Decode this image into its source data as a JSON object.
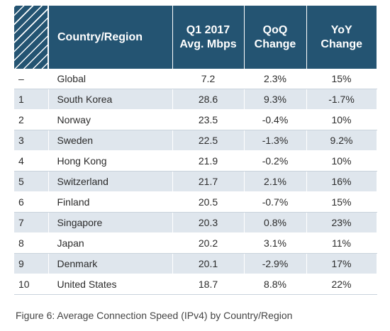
{
  "chart_data": {
    "type": "table",
    "columns": [
      "",
      "Country/Region",
      "Q1 2017 Avg. Mbps",
      "QoQ Change",
      "YoY Change"
    ],
    "header": {
      "country": "Country/Region",
      "speed_line1": "Q1 2017",
      "speed_line2": "Avg. Mbps",
      "qoq_line1": "QoQ",
      "qoq_line2": "Change",
      "yoy_line1": "YoY",
      "yoy_line2": "Change"
    },
    "rows": [
      {
        "rank": "–",
        "country": "Global",
        "speed": "7.2",
        "qoq": "2.3%",
        "yoy": "15%"
      },
      {
        "rank": "1",
        "country": "South Korea",
        "speed": "28.6",
        "qoq": "9.3%",
        "yoy": "-1.7%"
      },
      {
        "rank": "2",
        "country": "Norway",
        "speed": "23.5",
        "qoq": "-0.4%",
        "yoy": "10%"
      },
      {
        "rank": "3",
        "country": "Sweden",
        "speed": "22.5",
        "qoq": "-1.3%",
        "yoy": "9.2%"
      },
      {
        "rank": "4",
        "country": "Hong Kong",
        "speed": "21.9",
        "qoq": "-0.2%",
        "yoy": "10%"
      },
      {
        "rank": "5",
        "country": "Switzerland",
        "speed": "21.7",
        "qoq": "2.1%",
        "yoy": "16%"
      },
      {
        "rank": "6",
        "country": "Finland",
        "speed": "20.5",
        "qoq": "-0.7%",
        "yoy": "15%"
      },
      {
        "rank": "7",
        "country": "Singapore",
        "speed": "20.3",
        "qoq": "0.8%",
        "yoy": "23%"
      },
      {
        "rank": "8",
        "country": "Japan",
        "speed": "20.2",
        "qoq": "3.1%",
        "yoy": "11%"
      },
      {
        "rank": "9",
        "country": "Denmark",
        "speed": "20.1",
        "qoq": "-2.9%",
        "yoy": "17%"
      },
      {
        "rank": "10",
        "country": "United States",
        "speed": "18.7",
        "qoq": "8.8%",
        "yoy": "22%"
      }
    ],
    "caption": "Figure 6: Average Connection Speed (IPv4) by Country/Region"
  },
  "colors": {
    "header_bg": "#245472",
    "alt_row_bg": "#dfe6ed"
  }
}
